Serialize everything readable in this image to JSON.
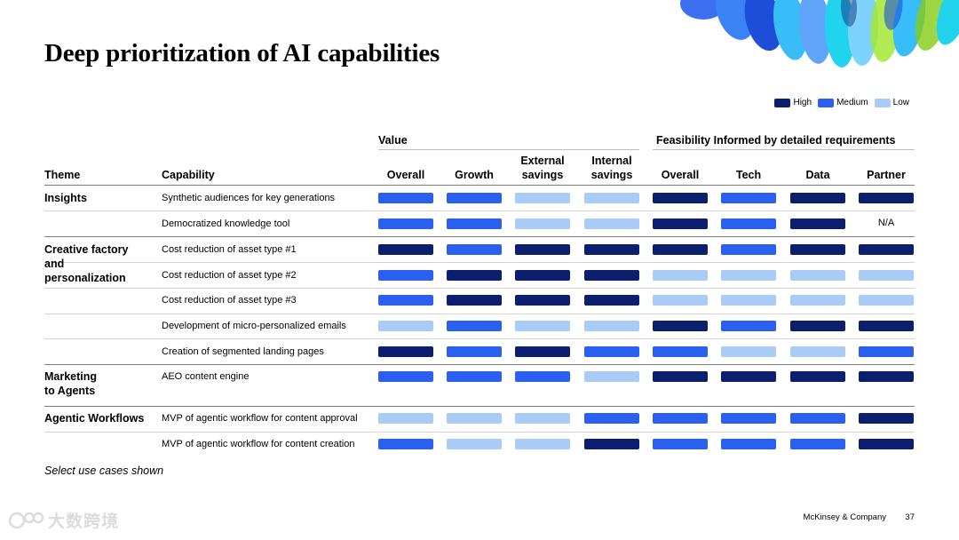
{
  "title": "Deep prioritization of AI capabilities",
  "colors": {
    "high": "#0b1f6e",
    "medium": "#2a5ff0",
    "low": "#a9cbf5"
  },
  "legend": [
    {
      "level": "high",
      "label": "High"
    },
    {
      "level": "medium",
      "label": "Medium"
    },
    {
      "level": "low",
      "label": "Low"
    }
  ],
  "groups": {
    "value": "Value",
    "feasibility": "Feasibility Informed by detailed requirements"
  },
  "headers": {
    "theme": "Theme",
    "capability": "Capability",
    "columns": [
      [
        "Overall"
      ],
      [
        "Growth"
      ],
      [
        "External",
        "savings"
      ],
      [
        "Internal",
        "savings"
      ],
      [
        "Overall"
      ],
      [
        "Tech"
      ],
      [
        "Data"
      ],
      [
        "Partner"
      ]
    ]
  },
  "themes": [
    [
      "Insights"
    ],
    [
      "Creative factory",
      "and",
      "personalization"
    ],
    [
      "Marketing",
      "to Agents"
    ],
    [
      "Agentic Workflows"
    ]
  ],
  "rows": [
    {
      "capability": "Synthetic audiences for key generations",
      "ratings": [
        "medium",
        "medium",
        "low",
        "low",
        "high",
        "medium",
        "high",
        "high"
      ]
    },
    {
      "capability": "Democratized knowledge tool",
      "ratings": [
        "medium",
        "medium",
        "low",
        "low",
        "high",
        "medium",
        "high",
        "N/A"
      ]
    },
    {
      "capability": "Cost reduction of asset type #1",
      "ratings": [
        "high",
        "medium",
        "high",
        "high",
        "high",
        "medium",
        "high",
        "high"
      ]
    },
    {
      "capability": "Cost reduction of asset type #2",
      "ratings": [
        "medium",
        "high",
        "high",
        "high",
        "low",
        "low",
        "low",
        "low"
      ]
    },
    {
      "capability": "Cost reduction of asset type #3",
      "ratings": [
        "medium",
        "high",
        "high",
        "high",
        "low",
        "low",
        "low",
        "low"
      ]
    },
    {
      "capability": "Development of micro-personalized emails",
      "ratings": [
        "low",
        "medium",
        "low",
        "low",
        "high",
        "medium",
        "high",
        "high"
      ]
    },
    {
      "capability": "Creation of segmented landing pages",
      "ratings": [
        "high",
        "medium",
        "high",
        "medium",
        "medium",
        "low",
        "low",
        "medium"
      ]
    },
    {
      "capability": "AEO content engine",
      "ratings": [
        "medium",
        "medium",
        "medium",
        "low",
        "high",
        "high",
        "high",
        "high"
      ]
    },
    {
      "capability": "MVP of agentic workflow for content approval",
      "ratings": [
        "low",
        "low",
        "low",
        "medium",
        "medium",
        "medium",
        "medium",
        "high"
      ]
    },
    {
      "capability": "MVP of agentic workflow for content creation",
      "ratings": [
        "medium",
        "low",
        "low",
        "high",
        "medium",
        "medium",
        "medium",
        "high"
      ]
    }
  ],
  "footnote": "Select use cases shown",
  "footer": {
    "brand": "McKinsey & Company",
    "page": "37"
  },
  "watermark": "大数跨境"
}
